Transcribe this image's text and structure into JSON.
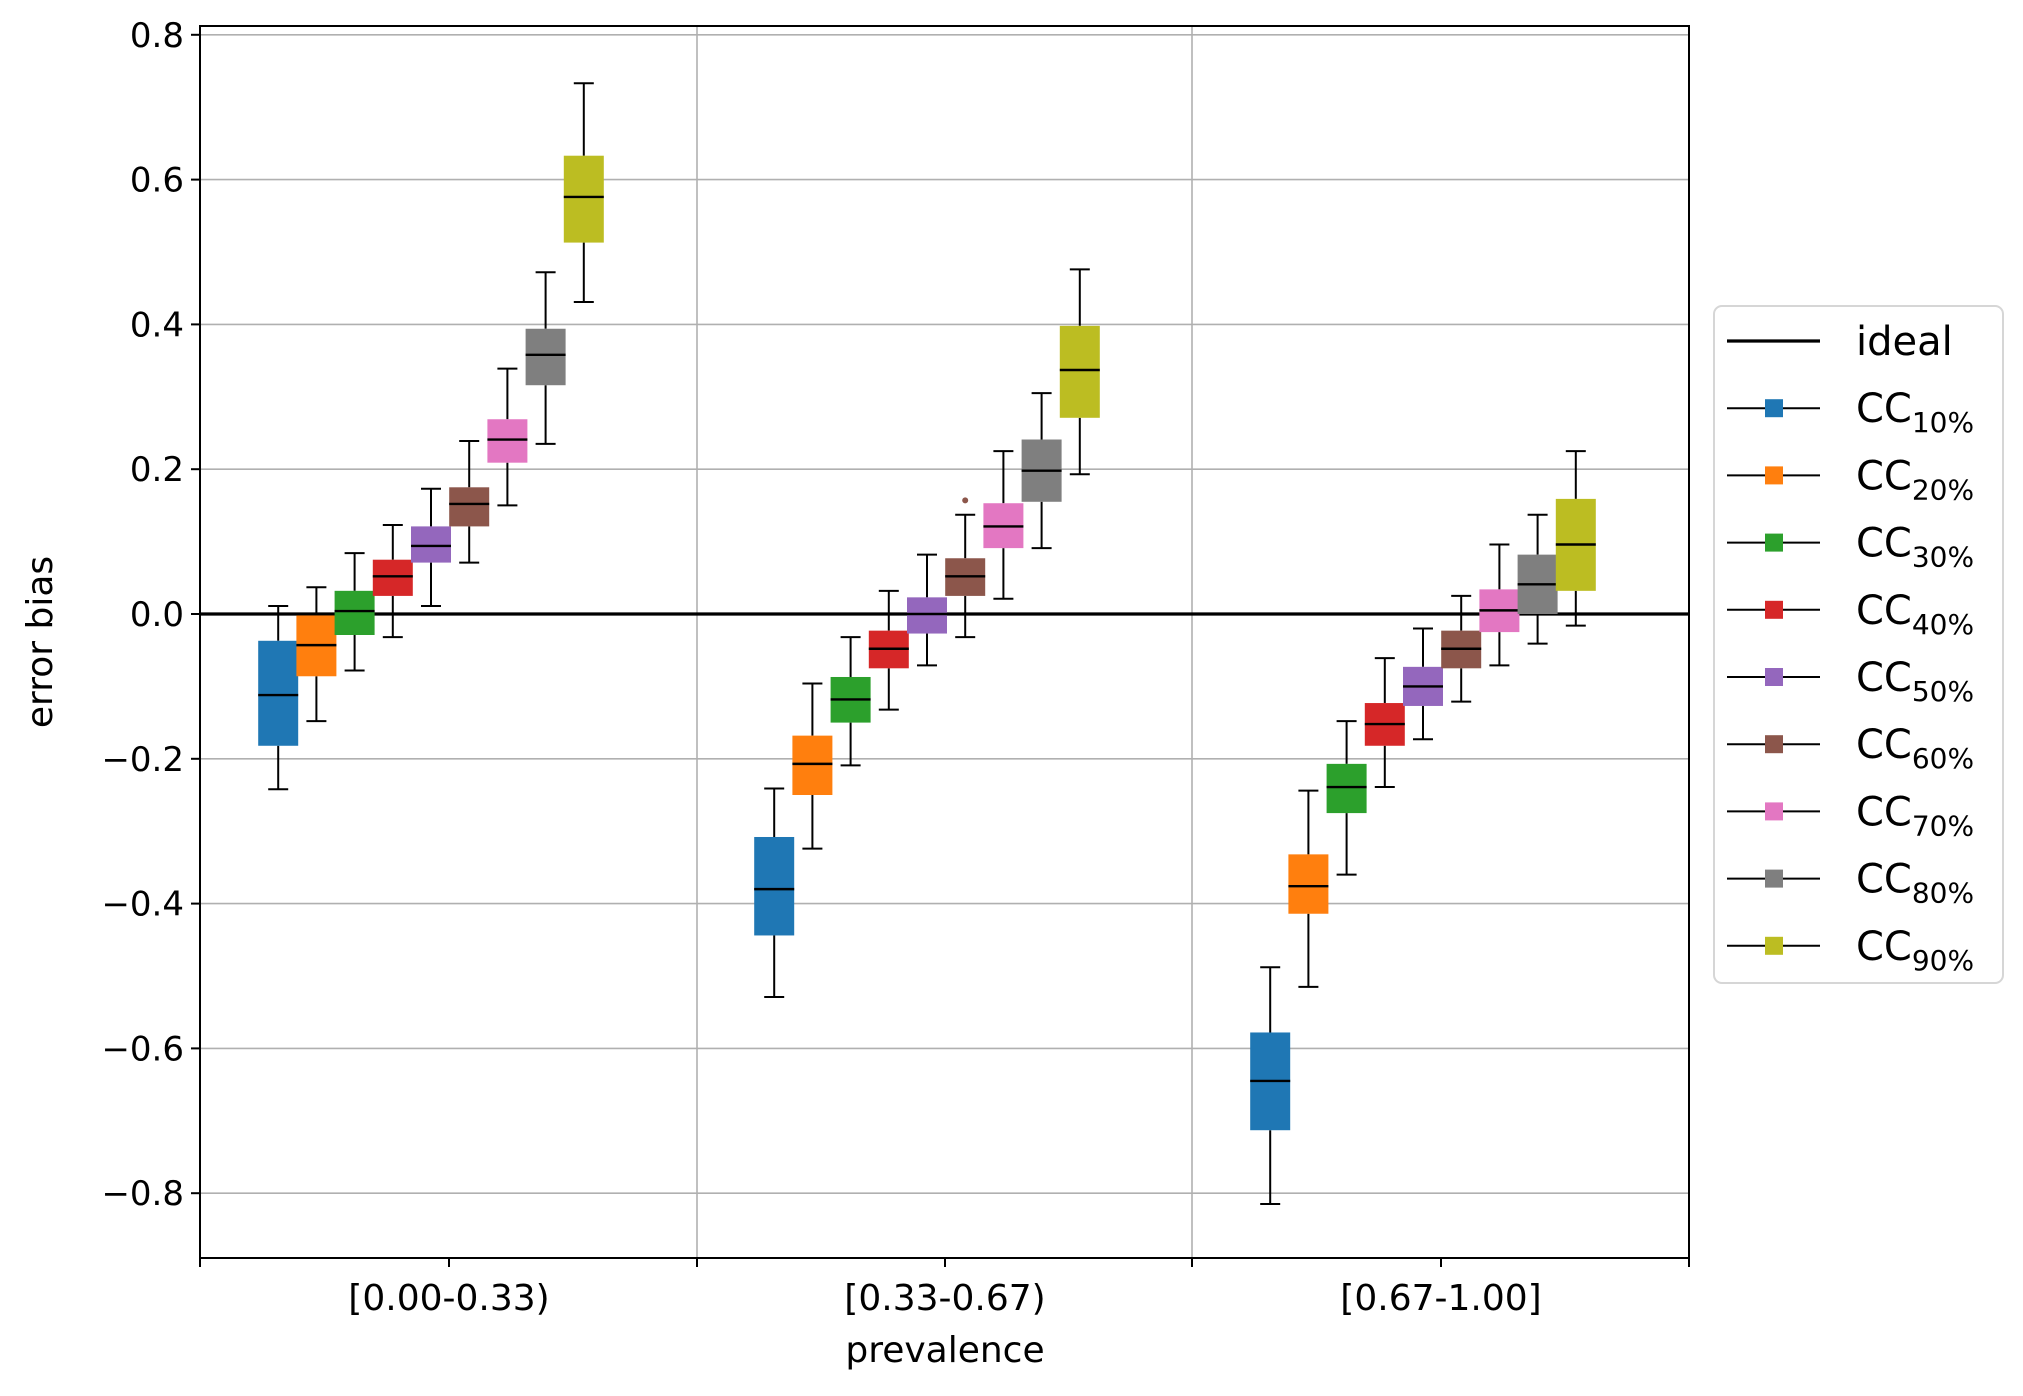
{
  "chart_data": {
    "type": "boxplot",
    "xlabel": "prevalence",
    "ylabel": "error bias",
    "ylim": [
      -0.89,
      0.812
    ],
    "yticks": [
      "0.8",
      "0.6",
      "0.4",
      "0.2",
      "0.0",
      "−0.2",
      "−0.4",
      "−0.6",
      "−0.8"
    ],
    "ytick_values": [
      0.8,
      0.6,
      0.4,
      0.2,
      0.0,
      -0.2,
      -0.4,
      -0.6,
      -0.8
    ],
    "grid": true,
    "legend_position": "center-right-outside",
    "categories": [
      "[0.00-0.33)",
      "[0.33-0.67)",
      "[0.67-1.00]"
    ],
    "ideal": {
      "name": "ideal",
      "value": 0.0,
      "color": "#000000"
    },
    "series": [
      {
        "name": "CC",
        "sub": "10%",
        "color": "#1f77b4",
        "boxes": [
          {
            "whislo": -0.242,
            "q1": -0.182,
            "med": -0.112,
            "q3": -0.037,
            "whishi": 0.011
          },
          {
            "whislo": -0.529,
            "q1": -0.444,
            "med": -0.38,
            "q3": -0.308,
            "whishi": -0.241
          },
          {
            "whislo": -0.815,
            "q1": -0.713,
            "med": -0.645,
            "q3": -0.578,
            "whishi": -0.488
          }
        ]
      },
      {
        "name": "CC",
        "sub": "20%",
        "color": "#ff7f0e",
        "boxes": [
          {
            "whislo": -0.148,
            "q1": -0.086,
            "med": -0.043,
            "q3": -0.002,
            "whishi": 0.037
          },
          {
            "whislo": -0.324,
            "q1": -0.25,
            "med": -0.207,
            "q3": -0.168,
            "whishi": -0.096
          },
          {
            "whislo": -0.515,
            "q1": -0.414,
            "med": -0.376,
            "q3": -0.332,
            "whishi": -0.244
          }
        ]
      },
      {
        "name": "CC",
        "sub": "30%",
        "color": "#2ca02c",
        "boxes": [
          {
            "whislo": -0.078,
            "q1": -0.029,
            "med": 0.004,
            "q3": 0.032,
            "whishi": 0.084
          },
          {
            "whislo": -0.209,
            "q1": -0.15,
            "med": -0.118,
            "q3": -0.087,
            "whishi": -0.032
          },
          {
            "whislo": -0.36,
            "q1": -0.275,
            "med": -0.239,
            "q3": -0.207,
            "whishi": -0.148
          }
        ]
      },
      {
        "name": "CC",
        "sub": "40%",
        "color": "#d62728",
        "boxes": [
          {
            "whislo": -0.032,
            "q1": 0.025,
            "med": 0.052,
            "q3": 0.075,
            "whishi": 0.123
          },
          {
            "whislo": -0.132,
            "q1": -0.075,
            "med": -0.048,
            "q3": -0.023,
            "whishi": 0.032
          },
          {
            "whislo": -0.239,
            "q1": -0.182,
            "med": -0.152,
            "q3": -0.123,
            "whishi": -0.061
          }
        ]
      },
      {
        "name": "CC",
        "sub": "50%",
        "color": "#9467bd",
        "boxes": [
          {
            "whislo": 0.011,
            "q1": 0.071,
            "med": 0.094,
            "q3": 0.121,
            "whishi": 0.173
          },
          {
            "whislo": -0.071,
            "q1": -0.027,
            "med": 0.0,
            "q3": 0.023,
            "whishi": 0.082
          },
          {
            "whislo": -0.173,
            "q1": -0.127,
            "med": -0.1,
            "q3": -0.073,
            "whishi": -0.02
          }
        ]
      },
      {
        "name": "CC",
        "sub": "60%",
        "color": "#8c564b",
        "boxes": [
          {
            "whislo": 0.071,
            "q1": 0.121,
            "med": 0.152,
            "q3": 0.175,
            "whishi": 0.239
          },
          {
            "whislo": -0.032,
            "q1": 0.025,
            "med": 0.052,
            "q3": 0.077,
            "whishi": 0.137,
            "outliers": [
              0.157
            ]
          },
          {
            "whislo": -0.121,
            "q1": -0.075,
            "med": -0.048,
            "q3": -0.023,
            "whishi": 0.025
          }
        ]
      },
      {
        "name": "CC",
        "sub": "70%",
        "color": "#e377c2",
        "boxes": [
          {
            "whislo": 0.15,
            "q1": 0.209,
            "med": 0.241,
            "q3": 0.269,
            "whishi": 0.339
          },
          {
            "whislo": 0.021,
            "q1": 0.091,
            "med": 0.121,
            "q3": 0.153,
            "whishi": 0.225
          },
          {
            "whislo": -0.071,
            "q1": -0.025,
            "med": 0.005,
            "q3": 0.034,
            "whishi": 0.096
          }
        ]
      },
      {
        "name": "CC",
        "sub": "80%",
        "color": "#7f7f7f",
        "boxes": [
          {
            "whislo": 0.235,
            "q1": 0.316,
            "med": 0.358,
            "q3": 0.394,
            "whishi": 0.472
          },
          {
            "whislo": 0.091,
            "q1": 0.155,
            "med": 0.198,
            "q3": 0.241,
            "whishi": 0.305
          },
          {
            "whislo": -0.041,
            "q1": 0.0,
            "med": 0.041,
            "q3": 0.082,
            "whishi": 0.137
          }
        ]
      },
      {
        "name": "CC",
        "sub": "90%",
        "color": "#bcbd22",
        "boxes": [
          {
            "whislo": 0.431,
            "q1": 0.513,
            "med": 0.576,
            "q3": 0.633,
            "whishi": 0.733
          },
          {
            "whislo": 0.193,
            "q1": 0.271,
            "med": 0.337,
            "q3": 0.398,
            "whishi": 0.476
          },
          {
            "whislo": -0.016,
            "q1": 0.032,
            "med": 0.096,
            "q3": 0.159,
            "whishi": 0.225
          }
        ]
      }
    ]
  }
}
